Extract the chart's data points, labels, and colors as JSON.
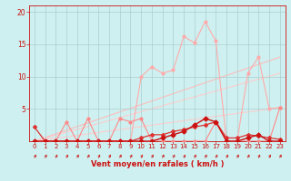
{
  "xlabel": "Vent moyen/en rafales ( km/h )",
  "xlim": [
    -0.5,
    23.5
  ],
  "ylim": [
    0,
    21
  ],
  "yticks": [
    5,
    10,
    15,
    20
  ],
  "xticks": [
    0,
    1,
    2,
    3,
    4,
    5,
    6,
    7,
    8,
    9,
    10,
    11,
    12,
    13,
    14,
    15,
    16,
    17,
    18,
    19,
    20,
    21,
    22,
    23
  ],
  "bg_color": "#cff0f0",
  "grid_color": "#aacece",
  "series": [
    {
      "x": [
        0,
        1,
        2,
        3,
        4,
        5,
        6,
        7,
        8,
        9,
        10,
        11,
        12,
        13,
        14,
        15,
        16,
        17,
        18,
        19,
        20,
        21,
        22,
        23
      ],
      "y": [
        0,
        0,
        0,
        0,
        0,
        0,
        0,
        0,
        0,
        0,
        10.0,
        11.5,
        10.5,
        11.0,
        16.2,
        15.2,
        18.5,
        15.5,
        0,
        0,
        10.5,
        13.0,
        5.0,
        5.2
      ],
      "color": "#ffaaaa",
      "lw": 0.8,
      "marker": "o",
      "ms": 2.0
    },
    {
      "x": [
        0,
        1,
        2,
        3,
        4,
        5,
        6,
        7,
        8,
        9,
        10,
        11,
        12,
        13,
        14,
        15,
        16,
        17,
        18,
        19,
        20,
        21,
        22,
        23
      ],
      "y": [
        0,
        0,
        0,
        3.0,
        0,
        3.5,
        0,
        0,
        3.5,
        3.0,
        3.5,
        0,
        0,
        0,
        0,
        0,
        0,
        3.0,
        0,
        0,
        0,
        0,
        0,
        5.2
      ],
      "color": "#ff8888",
      "lw": 0.8,
      "marker": "o",
      "ms": 2.0
    },
    {
      "x": [
        0,
        1,
        2,
        3,
        4,
        5,
        6,
        7,
        8,
        9,
        10,
        11,
        12,
        13,
        14,
        15,
        16,
        17,
        18,
        19,
        20,
        21,
        22,
        23
      ],
      "y": [
        2.2,
        0,
        0,
        0,
        0,
        0,
        0,
        0,
        0,
        0,
        0.5,
        1.0,
        1.0,
        1.5,
        1.8,
        2.2,
        2.5,
        3.0,
        0.5,
        0.5,
        1.0,
        0.8,
        0.5,
        0.3
      ],
      "color": "#dd3333",
      "lw": 0.9,
      "marker": "D",
      "ms": 2.0
    }
  ],
  "diag_lines": [
    {
      "x": [
        0,
        23
      ],
      "y": [
        0,
        13.0
      ],
      "color": "#ffbbbb",
      "lw": 0.8
    },
    {
      "x": [
        0,
        23
      ],
      "y": [
        0,
        10.5
      ],
      "color": "#ffcccc",
      "lw": 0.8
    },
    {
      "x": [
        0,
        23
      ],
      "y": [
        0,
        5.2
      ],
      "color": "#ffcccc",
      "lw": 0.8
    }
  ],
  "red_line": {
    "x": [
      0,
      1,
      2,
      3,
      4,
      5,
      6,
      7,
      8,
      9,
      10,
      11,
      12,
      13,
      14,
      15,
      16,
      17,
      18,
      19,
      20,
      21,
      22,
      23
    ],
    "y": [
      0,
      0,
      0,
      0,
      0,
      0,
      0,
      0,
      0,
      0,
      0,
      0,
      0.5,
      1.0,
      1.5,
      2.5,
      3.5,
      3.0,
      0,
      0,
      0.5,
      1.0,
      0,
      0
    ],
    "color": "#cc1111",
    "lw": 1.0,
    "marker": "D",
    "ms": 2.5
  },
  "xlabel_color": "#cc1111",
  "tick_color": "#cc1111",
  "axis_color": "#cc1111",
  "arrow_color": "#cc1111"
}
